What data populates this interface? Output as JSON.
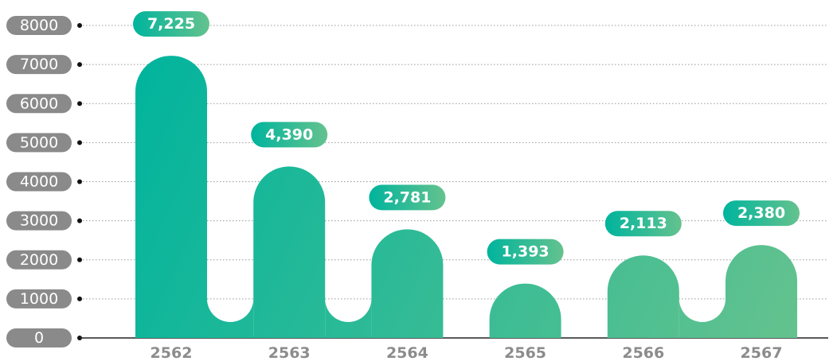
{
  "chart_data": {
    "type": "bar",
    "categories": [
      "2562",
      "2563",
      "2564",
      "2565",
      "2566",
      "2567"
    ],
    "values": [
      7225,
      4390,
      2781,
      1393,
      2113,
      2380
    ],
    "value_labels": [
      "7,225",
      "4,390",
      "2,781",
      "1,393",
      "2,113",
      "2,380"
    ],
    "color": "#1fb59a",
    "ylim": [
      0,
      8000
    ],
    "yticks": [
      0,
      1000,
      2000,
      3000,
      4000,
      5000,
      6000,
      7000,
      8000
    ],
    "grid": true
  }
}
